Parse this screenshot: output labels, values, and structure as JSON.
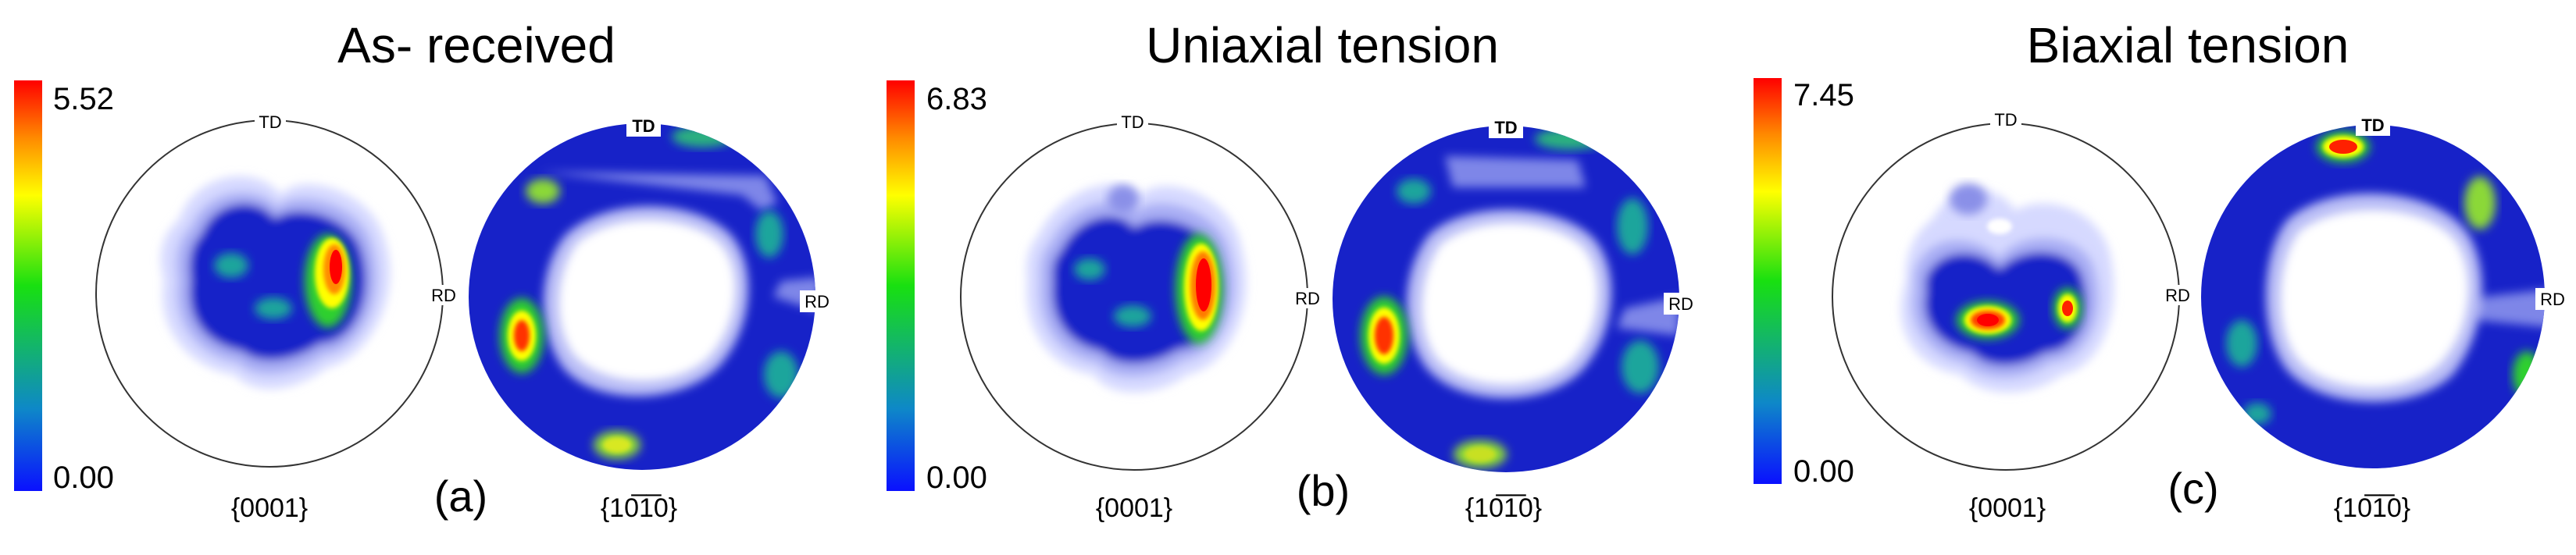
{
  "figure": {
    "panels": [
      {
        "id": "a",
        "title": "As- received",
        "label": "(a)",
        "scale": {
          "max": "5.52",
          "min": "0.00"
        },
        "basal_pole_label": "{0001}",
        "prismatic_pole_label": "{10̅1̅0}",
        "direction_labels": {
          "td": "TD",
          "rd": "RD"
        }
      },
      {
        "id": "b",
        "title": "Uniaxial tension",
        "label": "(b)",
        "scale": {
          "max": "6.83",
          "min": "0.00"
        },
        "basal_pole_label": "{0001}",
        "prismatic_pole_label": "{10̅1̅0}",
        "direction_labels": {
          "td": "TD",
          "rd": "RD"
        }
      },
      {
        "id": "c",
        "title": "Biaxial tension",
        "label": "(c)",
        "scale": {
          "max": "7.45",
          "min": "0.00"
        },
        "basal_pole_label": "{0001}",
        "prismatic_pole_label": "{10̅1̅0}",
        "direction_labels": {
          "td": "TD",
          "rd": "RD"
        }
      }
    ],
    "colormap": [
      "#0000ff",
      "#00c8ff",
      "#00ff00",
      "#ffff00",
      "#ff8000",
      "#ff0000"
    ]
  }
}
